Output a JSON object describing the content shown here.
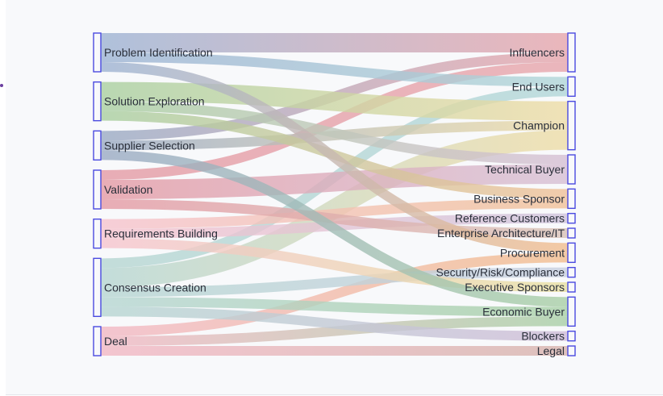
{
  "chart_data": {
    "type": "sankey",
    "title": "",
    "sources": [
      {
        "name": "Problem Identification",
        "color": "#9db3d3"
      },
      {
        "name": "Solution Exploration",
        "color": "#a9cfa0"
      },
      {
        "name": "Supplier Selection",
        "color": "#9aaac4"
      },
      {
        "name": "Validation",
        "color": "#e49aa4"
      },
      {
        "name": "Requirements Building",
        "color": "#f6c4ce"
      },
      {
        "name": "Consensus Creation",
        "color": "#b6d6d2"
      },
      {
        "name": "Deal",
        "color": "#f2b8c4"
      }
    ],
    "targets": [
      {
        "name": "Influencers",
        "color": "#e7a6ac"
      },
      {
        "name": "End Users",
        "color": "#b1d6d8"
      },
      {
        "name": "Champion",
        "color": "#eedca6"
      },
      {
        "name": "Technical Buyer",
        "color": "#d6bfd4"
      },
      {
        "name": "Business Sponsor",
        "color": "#f0c098"
      },
      {
        "name": "Reference Customers",
        "color": "#cfc4dc"
      },
      {
        "name": "Enterprise Architecture/IT",
        "color": "#d8c2b6"
      },
      {
        "name": "Procurement",
        "color": "#f2bd8e"
      },
      {
        "name": "Security/Risk/Compliance",
        "color": "#c8cfe0"
      },
      {
        "name": "Executive Sponsors",
        "color": "#e8e0a2"
      },
      {
        "name": "Economic Buyer",
        "color": "#a8cfa6"
      },
      {
        "name": "Blockers",
        "color": "#cfbcd8"
      },
      {
        "name": "Legal",
        "color": "#d7b3ad"
      }
    ],
    "links": [
      {
        "source": 0,
        "target": 0,
        "value": 2
      },
      {
        "source": 0,
        "target": 1,
        "value": 1
      },
      {
        "source": 0,
        "target": 7,
        "value": 1
      },
      {
        "source": 1,
        "target": 2,
        "value": 2
      },
      {
        "source": 1,
        "target": 3,
        "value": 1
      },
      {
        "source": 1,
        "target": 4,
        "value": 1
      },
      {
        "source": 2,
        "target": 0,
        "value": 1
      },
      {
        "source": 2,
        "target": 2,
        "value": 1
      },
      {
        "source": 2,
        "target": 10,
        "value": 1
      },
      {
        "source": 3,
        "target": 0,
        "value": 1
      },
      {
        "source": 3,
        "target": 3,
        "value": 2
      },
      {
        "source": 3,
        "target": 6,
        "value": 1
      },
      {
        "source": 4,
        "target": 4,
        "value": 1
      },
      {
        "source": 4,
        "target": 5,
        "value": 1
      },
      {
        "source": 4,
        "target": 9,
        "value": 1
      },
      {
        "source": 5,
        "target": 1,
        "value": 1
      },
      {
        "source": 5,
        "target": 2,
        "value": 2
      },
      {
        "source": 5,
        "target": 10,
        "value": 1
      },
      {
        "source": 5,
        "target": 11,
        "value": 1
      },
      {
        "source": 5,
        "target": 8,
        "value": 1
      },
      {
        "source": 6,
        "target": 7,
        "value": 1
      },
      {
        "source": 6,
        "target": 10,
        "value": 1
      },
      {
        "source": 6,
        "target": 12,
        "value": 1
      }
    ]
  }
}
